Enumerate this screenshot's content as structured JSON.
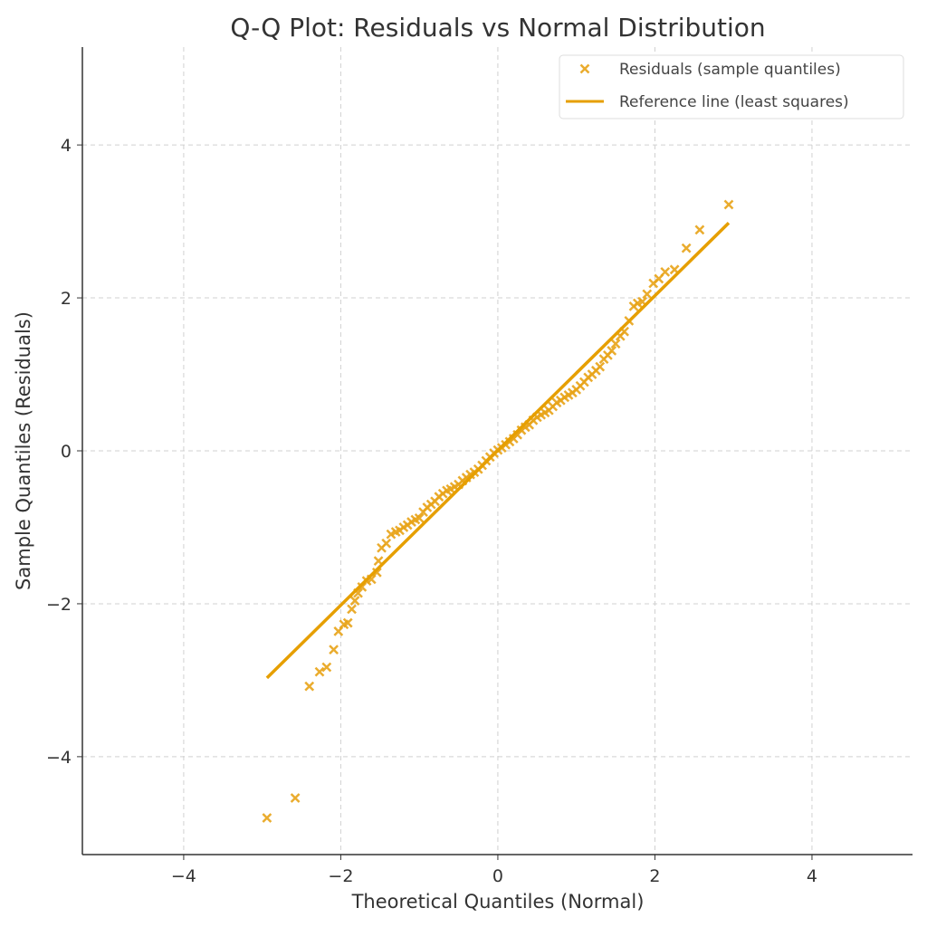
{
  "chart_data": {
    "type": "scatter",
    "title": "Q-Q Plot: Residuals vs Normal Distribution",
    "xlabel": "Theoretical Quantiles (Normal)",
    "ylabel": "Sample Quantiles (Residuals)",
    "xlim": [
      -5.29,
      5.28
    ],
    "ylim": [
      -5.28,
      5.28
    ],
    "xticks": [
      -4,
      -2,
      0,
      2,
      4
    ],
    "yticks": [
      -4,
      -2,
      0,
      2,
      4
    ],
    "xtick_labels": [
      "−4",
      "−2",
      "0",
      "2",
      "4"
    ],
    "ytick_labels": [
      "−4",
      "−2",
      "0",
      "2",
      "4"
    ],
    "grid": true,
    "legend_position": "top-right",
    "colors": {
      "points": "#E8A317",
      "line": "#E69F00"
    },
    "series": [
      {
        "name": "Residuals (sample quantiles)",
        "type": "scatter",
        "marker": "x",
        "points": [
          [
            -2.94,
            -4.8
          ],
          [
            -2.58,
            -4.54
          ],
          [
            -2.4,
            -3.08
          ],
          [
            -2.27,
            -2.89
          ],
          [
            -2.18,
            -2.83
          ],
          [
            -2.09,
            -2.6
          ],
          [
            -2.03,
            -2.36
          ],
          [
            -1.96,
            -2.27
          ],
          [
            -1.91,
            -2.25
          ],
          [
            -1.86,
            -2.07
          ],
          [
            -1.82,
            -1.96
          ],
          [
            -1.78,
            -1.86
          ],
          [
            -1.73,
            -1.78
          ],
          [
            -1.67,
            -1.7
          ],
          [
            -1.61,
            -1.68
          ],
          [
            -1.54,
            -1.59
          ],
          [
            -1.52,
            -1.44
          ],
          [
            -1.48,
            -1.27
          ],
          [
            -1.42,
            -1.21
          ],
          [
            -1.36,
            -1.09
          ],
          [
            -1.3,
            -1.06
          ],
          [
            -1.25,
            -1.04
          ],
          [
            -1.2,
            -1.0
          ],
          [
            -1.15,
            -0.97
          ],
          [
            -1.1,
            -0.93
          ],
          [
            -1.05,
            -0.9
          ],
          [
            -1.0,
            -0.88
          ],
          [
            -0.95,
            -0.8
          ],
          [
            -0.9,
            -0.74
          ],
          [
            -0.85,
            -0.7
          ],
          [
            -0.8,
            -0.66
          ],
          [
            -0.75,
            -0.6
          ],
          [
            -0.7,
            -0.56
          ],
          [
            -0.65,
            -0.52
          ],
          [
            -0.6,
            -0.5
          ],
          [
            -0.55,
            -0.47
          ],
          [
            -0.5,
            -0.44
          ],
          [
            -0.45,
            -0.39
          ],
          [
            -0.4,
            -0.35
          ],
          [
            -0.35,
            -0.31
          ],
          [
            -0.3,
            -0.28
          ],
          [
            -0.25,
            -0.24
          ],
          [
            -0.2,
            -0.19
          ],
          [
            -0.15,
            -0.13
          ],
          [
            -0.1,
            -0.08
          ],
          [
            -0.05,
            -0.03
          ],
          [
            0.0,
            0.01
          ],
          [
            0.05,
            0.04
          ],
          [
            0.1,
            0.08
          ],
          [
            0.15,
            0.12
          ],
          [
            0.2,
            0.16
          ],
          [
            0.25,
            0.21
          ],
          [
            0.3,
            0.27
          ],
          [
            0.35,
            0.31
          ],
          [
            0.4,
            0.34
          ],
          [
            0.45,
            0.4
          ],
          [
            0.5,
            0.44
          ],
          [
            0.55,
            0.47
          ],
          [
            0.6,
            0.5
          ],
          [
            0.65,
            0.53
          ],
          [
            0.7,
            0.58
          ],
          [
            0.75,
            0.63
          ],
          [
            0.8,
            0.66
          ],
          [
            0.85,
            0.7
          ],
          [
            0.9,
            0.73
          ],
          [
            0.95,
            0.76
          ],
          [
            1.0,
            0.8
          ],
          [
            1.05,
            0.85
          ],
          [
            1.1,
            0.9
          ],
          [
            1.15,
            0.96
          ],
          [
            1.2,
            1.0
          ],
          [
            1.25,
            1.05
          ],
          [
            1.3,
            1.1
          ],
          [
            1.35,
            1.2
          ],
          [
            1.4,
            1.25
          ],
          [
            1.45,
            1.31
          ],
          [
            1.5,
            1.4
          ],
          [
            1.56,
            1.5
          ],
          [
            1.61,
            1.56
          ],
          [
            1.67,
            1.7
          ],
          [
            1.73,
            1.89
          ],
          [
            1.78,
            1.93
          ],
          [
            1.84,
            1.95
          ],
          [
            1.9,
            2.05
          ],
          [
            1.98,
            2.19
          ],
          [
            2.05,
            2.25
          ],
          [
            2.13,
            2.34
          ],
          [
            2.25,
            2.37
          ],
          [
            2.4,
            2.65
          ],
          [
            2.57,
            2.89
          ],
          [
            2.94,
            3.22
          ]
        ]
      },
      {
        "name": "Reference line (least squares)",
        "type": "line",
        "points": [
          [
            -2.94,
            -2.97
          ],
          [
            2.94,
            2.98
          ]
        ]
      }
    ]
  }
}
